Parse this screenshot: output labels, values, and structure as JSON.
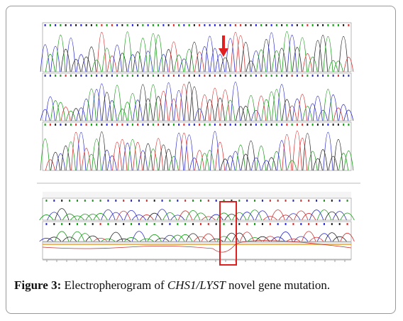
{
  "figure": {
    "label": "Figure 3:",
    "caption": "Electropherogram of",
    "gene": "CHS1/LYST",
    "rest": "novel gene mutation."
  }
}
